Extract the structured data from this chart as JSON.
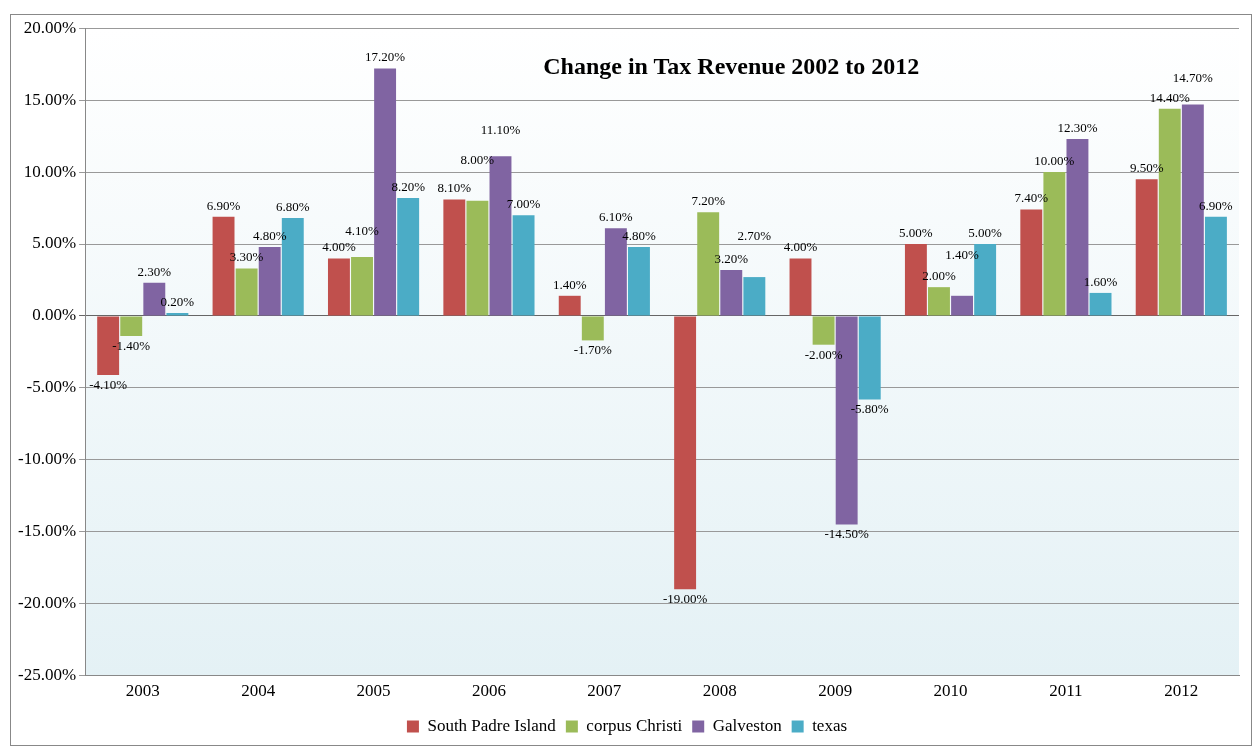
{
  "chart_data": {
    "type": "bar",
    "title": "Change in Tax Revenue 2002 to 2012",
    "categories": [
      "2003",
      "2004",
      "2005",
      "2006",
      "2007",
      "2008",
      "2009",
      "2010",
      "2011",
      "2012"
    ],
    "series": [
      {
        "name": "South Padre Island",
        "color": "#c0504d",
        "values": [
          -4.1,
          6.9,
          4.0,
          8.1,
          1.4,
          -19.0,
          4.0,
          5.0,
          7.4,
          9.5
        ],
        "value_labels": [
          "-4.10%",
          "6.90%",
          "4.00%",
          "8.10%",
          "1.40%",
          "-19.00%",
          "4.00%",
          "5.00%",
          "7.40%",
          "9.50%"
        ]
      },
      {
        "name": "corpus Christi",
        "color": "#9bbb59",
        "values": [
          -1.4,
          3.3,
          4.1,
          8.0,
          -1.7,
          7.2,
          -2.0,
          2.0,
          10.0,
          14.4
        ],
        "value_labels": [
          "-1.40%",
          "3.30%",
          "4.10%",
          "8.00%",
          "-1.70%",
          "7.20%",
          "-2.00%",
          "2.00%",
          "10.00%",
          "14.40%"
        ]
      },
      {
        "name": "Galveston",
        "color": "#8064a2",
        "values": [
          2.3,
          4.8,
          17.2,
          11.1,
          6.1,
          3.2,
          -14.5,
          1.4,
          12.3,
          14.7
        ],
        "value_labels": [
          "2.30%",
          "4.80%",
          "17.20%",
          "11.10%",
          "6.10%",
          "3.20%",
          "-14.50%",
          "1.40%",
          "12.30%",
          "14.70%"
        ]
      },
      {
        "name": "texas",
        "color": "#4bacc6",
        "values": [
          0.2,
          6.8,
          8.2,
          7.0,
          4.8,
          2.7,
          -5.8,
          5.0,
          1.6,
          6.9
        ],
        "value_labels": [
          "0.20%",
          "6.80%",
          "8.20%",
          "7.00%",
          "4.80%",
          "2.70%",
          "-5.80%",
          "5.00%",
          "1.60%",
          "6.90%"
        ]
      }
    ],
    "ylim": [
      -25,
      20
    ],
    "yticks": [
      {
        "value": -25,
        "label": "-25.00%"
      },
      {
        "value": -20,
        "label": "-20.00%"
      },
      {
        "value": -15,
        "label": "-15.00%"
      },
      {
        "value": -10,
        "label": "-10.00%"
      },
      {
        "value": -5,
        "label": "-5.00%"
      },
      {
        "value": 0,
        "label": "0.00%"
      },
      {
        "value": 5,
        "label": "5.00%"
      },
      {
        "value": 10,
        "label": "10.00%"
      },
      {
        "value": 15,
        "label": "15.00%"
      },
      {
        "value": 20,
        "label": "20.00%"
      }
    ],
    "grid": "y",
    "legend": "bottom"
  }
}
